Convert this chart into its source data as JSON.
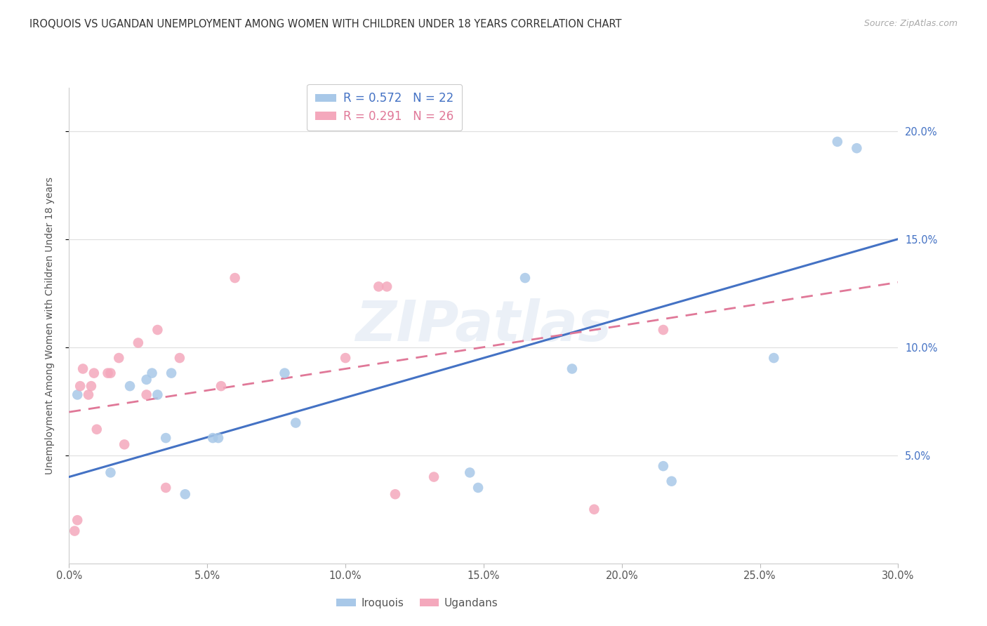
{
  "title": "IROQUOIS VS UGANDAN UNEMPLOYMENT AMONG WOMEN WITH CHILDREN UNDER 18 YEARS CORRELATION CHART",
  "source": "Source: ZipAtlas.com",
  "ylabel_label": "Unemployment Among Women with Children Under 18 years",
  "watermark": "ZIPatlas",
  "iroquois_color": "#a8c8e8",
  "ugandans_color": "#f4a8bc",
  "iroquois_line_color": "#4472c4",
  "ugandans_line_color": "#e07898",
  "iroquois_R": 0.572,
  "iroquois_N": 22,
  "ugandans_R": 0.291,
  "ugandans_N": 26,
  "xlim": [
    0,
    30
  ],
  "ylim": [
    0,
    22
  ],
  "xlabel_vals": [
    0.0,
    5.0,
    10.0,
    15.0,
    20.0,
    25.0,
    30.0
  ],
  "ylabel_vals": [
    5.0,
    10.0,
    15.0,
    20.0
  ],
  "background_color": "#ffffff",
  "grid_color": "#e0e0e0",
  "iroquois_line_x0": 0,
  "iroquois_line_y0": 4.0,
  "iroquois_line_x1": 30,
  "iroquois_line_y1": 15.0,
  "ugandans_line_x0": 0,
  "ugandans_line_y0": 7.0,
  "ugandans_line_x1": 30,
  "ugandans_line_y1": 13.0,
  "iroquois_x": [
    0.3,
    1.5,
    2.2,
    2.8,
    3.0,
    3.2,
    3.5,
    3.7,
    4.2,
    5.2,
    5.4,
    7.8,
    8.2,
    14.5,
    14.8,
    16.5,
    18.2,
    21.5,
    21.8,
    25.5,
    27.8,
    28.5
  ],
  "iroquois_y": [
    7.8,
    4.2,
    8.2,
    8.5,
    8.8,
    7.8,
    5.8,
    8.8,
    3.2,
    5.8,
    5.8,
    8.8,
    6.5,
    4.2,
    3.5,
    13.2,
    9.0,
    4.5,
    3.8,
    9.5,
    19.5,
    19.2
  ],
  "ugandans_x": [
    0.2,
    0.3,
    0.4,
    0.5,
    0.7,
    0.8,
    0.9,
    1.0,
    1.4,
    1.5,
    1.8,
    2.0,
    2.5,
    2.8,
    3.2,
    3.5,
    4.0,
    5.5,
    6.0,
    10.0,
    11.2,
    11.5,
    11.8,
    13.2,
    19.0,
    21.5
  ],
  "ugandans_y": [
    1.5,
    2.0,
    8.2,
    9.0,
    7.8,
    8.2,
    8.8,
    6.2,
    8.8,
    8.8,
    9.5,
    5.5,
    10.2,
    7.8,
    10.8,
    3.5,
    9.5,
    8.2,
    13.2,
    9.5,
    12.8,
    12.8,
    3.2,
    4.0,
    2.5,
    10.8
  ]
}
